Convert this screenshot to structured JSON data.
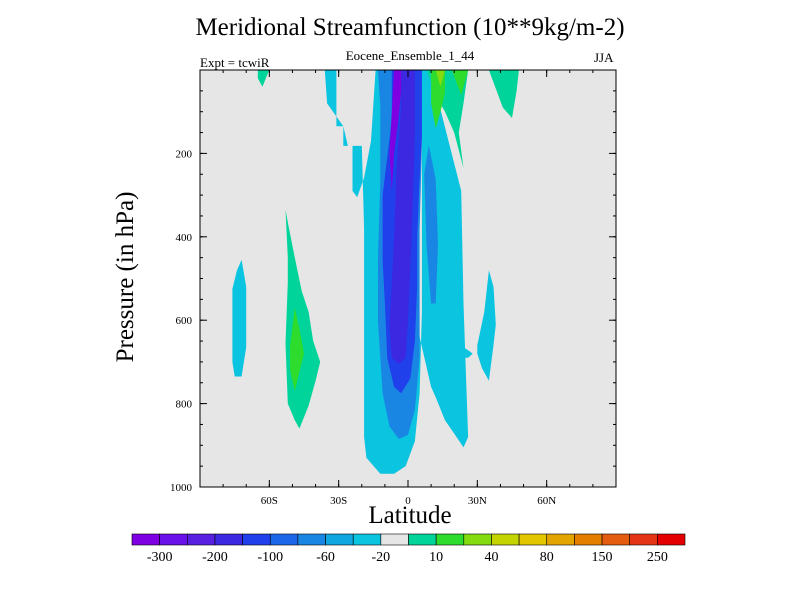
{
  "chart_data": {
    "type": "contour",
    "title": "Meridional Streamfunction (10**9kg/m-2)",
    "subtitle": "Eocene_Ensemble_1_44",
    "left_label": "Expt = tcwiR",
    "right_label": "JJA",
    "xlabel": "Latitude",
    "ylabel": "Pressure (in hPa)",
    "xlim": [
      -90,
      90
    ],
    "ylim": [
      1000,
      0
    ],
    "x_ticks": [
      {
        "value": -60,
        "label": "60S"
      },
      {
        "value": -30,
        "label": "30S"
      },
      {
        "value": 0,
        "label": "0"
      },
      {
        "value": 30,
        "label": "30N"
      },
      {
        "value": 60,
        "label": "60N"
      }
    ],
    "y_ticks": [
      {
        "value": 200,
        "label": "200"
      },
      {
        "value": 400,
        "label": "400"
      },
      {
        "value": 600,
        "label": "600"
      },
      {
        "value": 800,
        "label": "800"
      },
      {
        "value": 1000,
        "label": "1000"
      }
    ],
    "missing_fill": "#e6e6e6",
    "color_scale": {
      "colors": [
        "#7e00e2",
        "#6a10e8",
        "#5a20e2",
        "#3c28e0",
        "#2040ec",
        "#1c66ea",
        "#1a86e4",
        "#10a6e0",
        "#0ac4e0",
        "#e6e6e6",
        "#00d49a",
        "#2edc2e",
        "#84dc10",
        "#c4d400",
        "#e4c600",
        "#e4a400",
        "#e47e00",
        "#e45c10",
        "#e43616",
        "#e40000"
      ],
      "tick_labels": [
        "-300",
        "-200",
        "-100",
        "-60",
        "-20",
        "10",
        "40",
        "80",
        "150",
        "250"
      ]
    },
    "regions": [
      {
        "level": -20,
        "points": [
          [
            -36,
            0
          ],
          [
            -31,
            0
          ],
          [
            -31,
            135
          ],
          [
            -28,
            135
          ],
          [
            -28,
            182
          ],
          [
            -24,
            182
          ],
          [
            -24,
            290
          ],
          [
            -22,
            305
          ],
          [
            -19,
            258
          ],
          [
            -16,
            170
          ],
          [
            -14,
            0
          ],
          [
            -12,
            0
          ],
          [
            -5,
            258
          ],
          [
            2,
            475
          ],
          [
            5,
            640
          ],
          [
            10,
            760
          ],
          [
            12,
            785
          ],
          [
            16,
            840
          ],
          [
            21,
            880
          ],
          [
            24,
            905
          ],
          [
            26,
            880
          ],
          [
            24,
            560
          ],
          [
            23,
            290
          ],
          [
            12,
            50
          ],
          [
            10,
            0
          ],
          [
            6,
            0
          ],
          [
            6,
            460
          ],
          [
            6,
            580
          ],
          [
            5,
            775
          ],
          [
            3,
            890
          ],
          [
            -1,
            950
          ],
          [
            -6,
            968
          ],
          [
            -12,
            968
          ],
          [
            -18,
            930
          ],
          [
            -19,
            880
          ],
          [
            -19,
            380
          ],
          [
            -20,
            182
          ],
          [
            -26,
            182
          ],
          [
            -28,
            135
          ],
          [
            -35,
            80
          ],
          [
            -36,
            0
          ]
        ]
      },
      {
        "level": -20,
        "points": [
          [
            -76,
            525
          ],
          [
            -74,
            480
          ],
          [
            -72,
            455
          ],
          [
            -70,
            520
          ],
          [
            -70,
            600
          ],
          [
            -70,
            665
          ],
          [
            -72,
            735
          ],
          [
            -75,
            735
          ],
          [
            -76,
            700
          ],
          [
            -76,
            610
          ]
        ]
      },
      {
        "level": -20,
        "points": [
          [
            30,
            660
          ],
          [
            33,
            580
          ],
          [
            35,
            480
          ],
          [
            37,
            520
          ],
          [
            38,
            610
          ],
          [
            37,
            660
          ],
          [
            35,
            745
          ],
          [
            32,
            715
          ],
          [
            30,
            680
          ]
        ]
      },
      {
        "level": -20,
        "points": [
          [
            24,
            665
          ],
          [
            26,
            672
          ],
          [
            28,
            680
          ],
          [
            26,
            690
          ],
          [
            24,
            690
          ]
        ]
      },
      {
        "level": -60,
        "points": [
          [
            -30,
            0
          ],
          [
            -13,
            0
          ],
          [
            -12,
            90
          ],
          [
            -12,
            270
          ],
          [
            -13,
            450
          ],
          [
            -13,
            605
          ],
          [
            -11,
            775
          ],
          [
            -8,
            855
          ],
          [
            -4,
            885
          ],
          [
            0,
            875
          ],
          [
            3,
            815
          ],
          [
            5,
            690
          ],
          [
            5,
            540
          ],
          [
            5,
            385
          ],
          [
            6,
            180
          ],
          [
            6,
            0
          ],
          [
            -1,
            0
          ],
          [
            -1,
            0
          ],
          [
            -5,
            0
          ],
          [
            -12,
            0
          ],
          [
            -30,
            0
          ]
        ]
      },
      {
        "level": -60,
        "points": [
          [
            7,
            250
          ],
          [
            9,
            180
          ],
          [
            12,
            262
          ],
          [
            13,
            420
          ],
          [
            12,
            560
          ],
          [
            10,
            560
          ],
          [
            8,
            420
          ]
        ]
      },
      {
        "level": -100,
        "points": [
          [
            -13,
            0
          ],
          [
            -7,
            0
          ],
          [
            -7,
            120
          ],
          [
            -11,
            300
          ],
          [
            -11,
            455
          ],
          [
            -10,
            560
          ],
          [
            -9,
            690
          ],
          [
            -6,
            760
          ],
          [
            -3,
            775
          ],
          [
            1,
            740
          ],
          [
            3,
            650
          ],
          [
            4,
            520
          ],
          [
            4,
            400
          ],
          [
            5,
            260
          ],
          [
            6,
            160
          ],
          [
            6,
            0
          ],
          [
            -1,
            0
          ],
          [
            -4,
            0
          ]
        ]
      },
      {
        "level": -200,
        "points": [
          [
            -9,
            0
          ],
          [
            -3,
            0
          ],
          [
            -3,
            90
          ],
          [
            -5,
            240
          ],
          [
            -6,
            400
          ],
          [
            -7,
            510
          ],
          [
            -8,
            610
          ],
          [
            -7,
            690
          ],
          [
            -4,
            705
          ],
          [
            -1,
            690
          ],
          [
            0,
            600
          ],
          [
            1,
            470
          ],
          [
            2,
            330
          ],
          [
            3,
            160
          ],
          [
            3,
            0
          ],
          [
            -1,
            0
          ]
        ]
      },
      {
        "level": -300,
        "points": [
          [
            -6,
            0
          ],
          [
            -3,
            0
          ],
          [
            -3,
            50
          ],
          [
            -4,
            110
          ],
          [
            -6,
            200
          ],
          [
            -7,
            290
          ],
          [
            -8,
            200
          ],
          [
            -7,
            100
          ]
        ]
      },
      {
        "level": 10,
        "points": [
          [
            -65,
            0
          ],
          [
            -60,
            0
          ],
          [
            -63,
            40
          ],
          [
            -65,
            20
          ]
        ]
      },
      {
        "level": 10,
        "points": [
          [
            -52,
            365
          ],
          [
            -49,
            450
          ],
          [
            -46,
            530
          ],
          [
            -43,
            580
          ],
          [
            -41,
            650
          ],
          [
            -38,
            700
          ],
          [
            -40,
            745
          ],
          [
            -43,
            805
          ],
          [
            -47,
            860
          ],
          [
            -49,
            840
          ],
          [
            -52,
            800
          ],
          [
            -53,
            655
          ],
          [
            -52,
            510
          ],
          [
            -52,
            450
          ],
          [
            -53,
            335
          ]
        ]
      },
      {
        "level": 10,
        "points": [
          [
            8,
            0
          ],
          [
            26,
            0
          ],
          [
            24,
            80
          ],
          [
            22,
            150
          ],
          [
            24,
            235
          ],
          [
            20,
            150
          ],
          [
            16,
            100
          ],
          [
            12,
            60
          ]
        ]
      },
      {
        "level": 10,
        "points": [
          [
            35,
            0
          ],
          [
            48,
            0
          ],
          [
            47,
            50
          ],
          [
            45,
            115
          ],
          [
            41,
            90
          ]
        ]
      },
      {
        "level": 40,
        "points": [
          [
            -49,
            570
          ],
          [
            -47,
            620
          ],
          [
            -45,
            680
          ],
          [
            -47,
            725
          ],
          [
            -49,
            770
          ],
          [
            -51,
            720
          ],
          [
            -51,
            660
          ]
        ]
      },
      {
        "level": 40,
        "points": [
          [
            10,
            0
          ],
          [
            16,
            0
          ],
          [
            16,
            55
          ],
          [
            14,
            100
          ],
          [
            12,
            140
          ],
          [
            10,
            80
          ]
        ]
      },
      {
        "level": 40,
        "points": [
          [
            19,
            0
          ],
          [
            26,
            0
          ],
          [
            23,
            60
          ],
          [
            21,
            30
          ]
        ]
      },
      {
        "level": 80,
        "points": [
          [
            12,
            0
          ],
          [
            16,
            0
          ],
          [
            14,
            40
          ]
        ]
      }
    ]
  }
}
